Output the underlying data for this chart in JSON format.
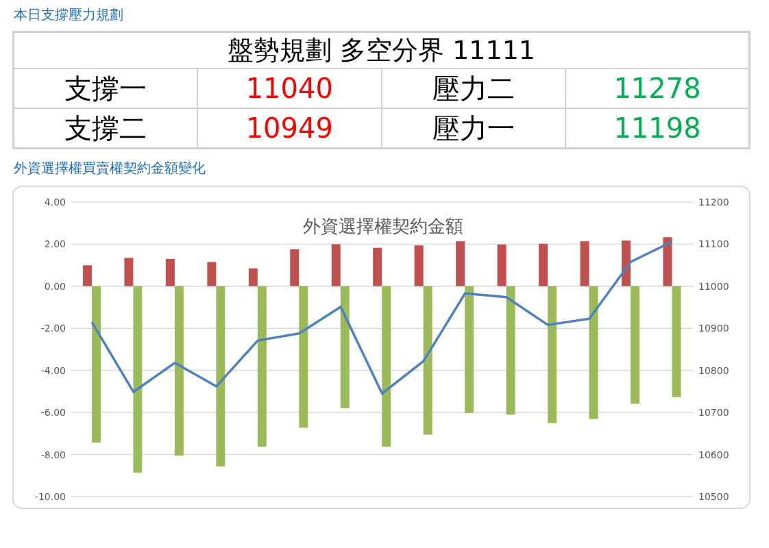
{
  "chart_data": [
    {
      "type": "other",
      "title": "本日支撐壓力規劃",
      "subtitle": "盤勢規劃 多空分界 11111",
      "annotations": [
        "支撐一",
        "11040",
        "壓力二",
        "11278",
        "支撐二",
        "10949",
        "壓力一",
        "11198"
      ],
      "colors": [
        "#000000",
        "#ff0000",
        "#000000",
        "#00b050",
        "#000000",
        "#ff0000",
        "#000000",
        "#00b050"
      ]
    },
    {
      "type": "bar",
      "title": "外資選擇權契約金額",
      "subtitle": "外資選擇權買賣權契約金額變化",
      "categories": [
        null,
        null,
        null,
        null,
        null,
        null,
        null,
        null,
        null,
        null,
        null,
        null,
        null,
        null,
        null
      ],
      "series": [
        {
          "color": "#c0504d",
          "values": [
            1.0,
            1.35,
            1.3,
            1.15,
            0.85,
            1.75,
            2.0,
            1.83,
            1.94,
            2.14,
            1.98,
            2.02,
            2.14,
            2.17,
            2.33
          ]
        },
        {
          "color": "#9bbb59",
          "values": [
            -7.43,
            -8.86,
            -8.05,
            -8.57,
            -7.63,
            -6.73,
            -5.79,
            -7.63,
            -7.05,
            -6.02,
            -6.1,
            -6.51,
            -6.31,
            -5.59,
            -5.27
          ]
        },
        {
          "type": "line",
          "axis": "y2",
          "color": "#4f81bd",
          "values": [
            10914,
            10749,
            10818,
            10762,
            10871,
            10888,
            10951,
            10745,
            10822,
            10983,
            10974,
            10908,
            10923,
            11058,
            11106
          ]
        }
      ],
      "ylim": [
        -10,
        4
      ],
      "yticks": [
        {
          "value": -10,
          "label": "-10.00"
        },
        {
          "value": -8,
          "label": "-8.00"
        },
        {
          "value": -6,
          "label": "-6.00"
        },
        {
          "value": -4,
          "label": "-4.00"
        },
        {
          "value": -2,
          "label": "-2.00"
        },
        {
          "value": 0,
          "label": "0.00"
        },
        {
          "value": 2,
          "label": "2.00"
        },
        {
          "value": 4,
          "label": "4.00"
        }
      ],
      "y2lim": [
        10500,
        11200
      ],
      "y2ticks": [
        10500,
        10600,
        10700,
        10800,
        10900,
        11000,
        11100,
        11200
      ],
      "grid": "y",
      "legend": false,
      "tick_labels": "y",
      "marker": "none",
      "line_style": "solid"
    }
  ]
}
